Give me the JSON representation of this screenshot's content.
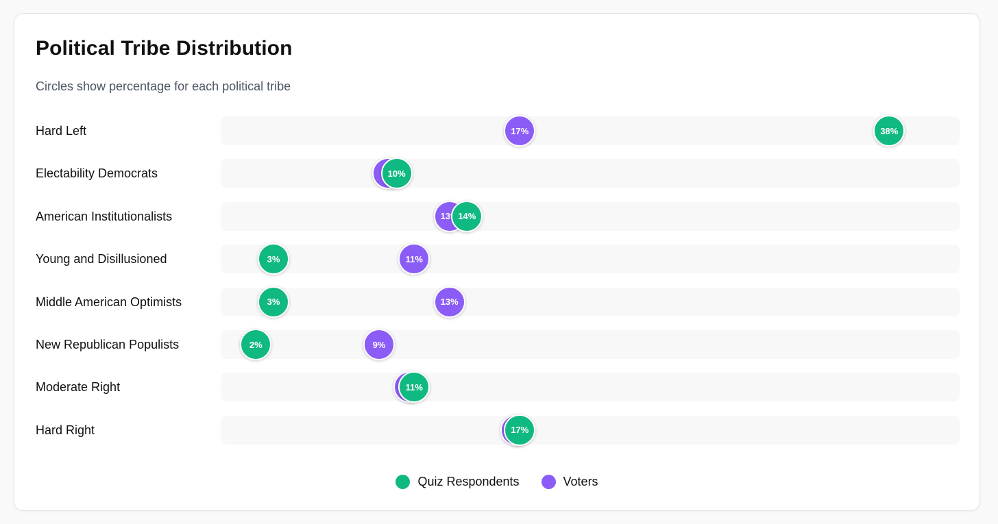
{
  "chart_data": {
    "type": "scatter",
    "title": "Political Tribe Distribution",
    "subtitle": "Circles show percentage for each political tribe",
    "categories": [
      "Hard Left",
      "Electability Democrats",
      "American Institutionalists",
      "Young and Disillusioned",
      "Middle American Optimists",
      "New Republican Populists",
      "Moderate Right",
      "Hard Right"
    ],
    "series": [
      {
        "name": "Quiz Respondents",
        "color": "#10b981",
        "values": [
          38,
          10,
          14,
          3,
          3,
          2,
          11,
          17
        ]
      },
      {
        "name": "Voters",
        "color": "#8b5cf6",
        "values": [
          17,
          9.5,
          13,
          11,
          13,
          9,
          10.7,
          16.8
        ]
      }
    ],
    "value_labels": {
      "Quiz Respondents": [
        "38%",
        "10%",
        "14%",
        "3%",
        "3%",
        "2%",
        "11%",
        "17%"
      ],
      "Voters": [
        "17%",
        "",
        "13%",
        "11%",
        "13%",
        "9%",
        "",
        ""
      ]
    },
    "xlim": [
      0,
      42
    ],
    "grid": false,
    "legend_position": "bottom-center"
  }
}
